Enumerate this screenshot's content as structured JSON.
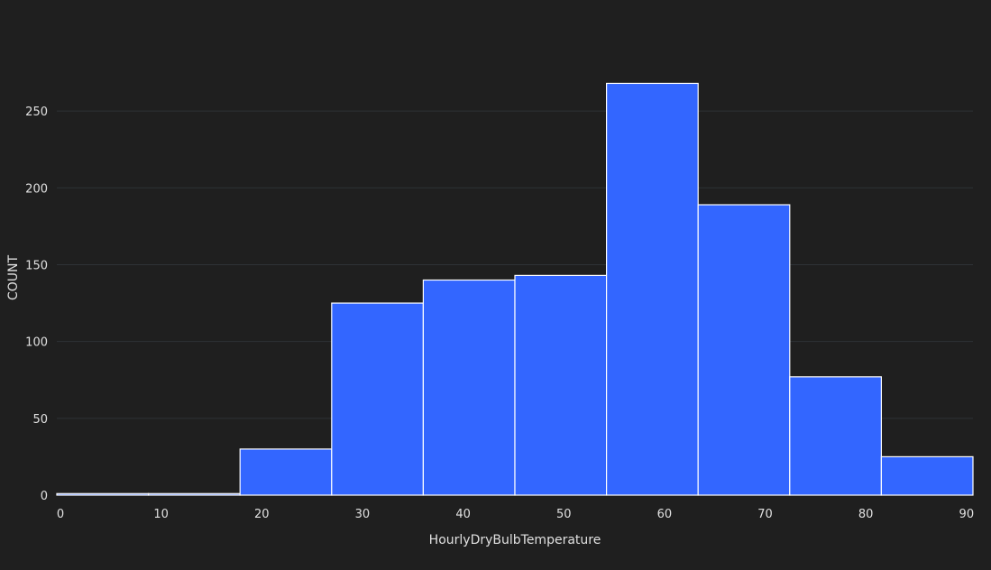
{
  "chart_data": {
    "type": "bar",
    "subtype": "histogram",
    "xlabel": "HourlyDryBulbTemperature",
    "ylabel": "COUNT",
    "xlim": [
      0,
      91
    ],
    "ylim": [
      0,
      280
    ],
    "x_ticks": [
      0,
      10,
      20,
      30,
      40,
      50,
      60,
      70,
      80,
      90
    ],
    "y_ticks": [
      0,
      50,
      100,
      150,
      200,
      250
    ],
    "grid": true,
    "bar_color": "#3366ff",
    "bar_edge_color": "#ffffff",
    "background_color": "#1f1f1f",
    "bins": [
      {
        "start": 0,
        "end": 9.1,
        "value": 1
      },
      {
        "start": 9.1,
        "end": 18.2,
        "value": 1
      },
      {
        "start": 18.2,
        "end": 27.3,
        "value": 30
      },
      {
        "start": 27.3,
        "end": 36.4,
        "value": 125
      },
      {
        "start": 36.4,
        "end": 45.5,
        "value": 140
      },
      {
        "start": 45.5,
        "end": 54.6,
        "value": 143
      },
      {
        "start": 54.6,
        "end": 63.7,
        "value": 268
      },
      {
        "start": 63.7,
        "end": 72.8,
        "value": 189
      },
      {
        "start": 72.8,
        "end": 81.9,
        "value": 77
      },
      {
        "start": 81.9,
        "end": 91.0,
        "value": 25
      }
    ]
  }
}
